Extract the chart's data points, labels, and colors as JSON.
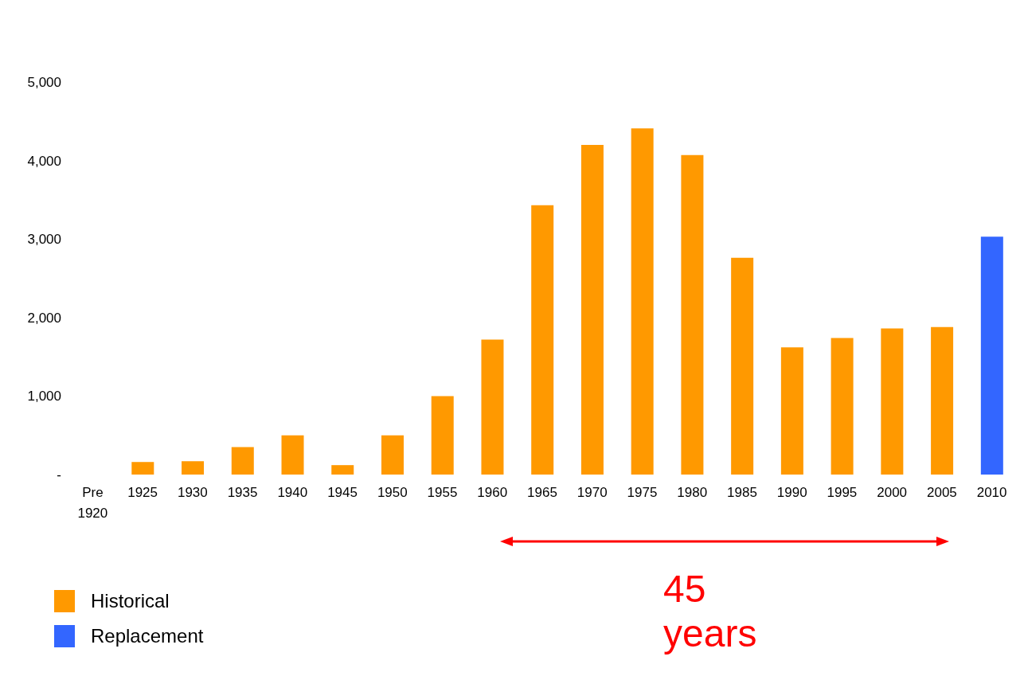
{
  "chart_data": {
    "type": "bar",
    "stacked": true,
    "categories": [
      "Pre 1920",
      "1925",
      "1930",
      "1935",
      "1940",
      "1945",
      "1950",
      "1955",
      "1960",
      "1965",
      "1970",
      "1975",
      "1980",
      "1985",
      "1990",
      "1995",
      "2000",
      "2005",
      "2010"
    ],
    "series": [
      {
        "name": "Historical",
        "color": "#ff9900",
        "values": [
          0,
          160,
          170,
          350,
          500,
          120,
          500,
          1000,
          1720,
          3430,
          4200,
          4410,
          4070,
          2760,
          1620,
          1740,
          1860,
          1880,
          null
        ]
      },
      {
        "name": "Replacement",
        "color": "#3366ff",
        "values": [
          null,
          null,
          null,
          null,
          null,
          null,
          null,
          null,
          null,
          null,
          null,
          null,
          null,
          null,
          null,
          null,
          null,
          null,
          3030
        ]
      }
    ],
    "ylim": [
      0,
      5000
    ],
    "yticks": [
      {
        "value": 0,
        "label": "-"
      },
      {
        "value": 1000,
        "label": "1,000"
      },
      {
        "value": 2000,
        "label": "2,000"
      },
      {
        "value": 3000,
        "label": "3,000"
      },
      {
        "value": 4000,
        "label": "4,000"
      },
      {
        "value": 5000,
        "label": "5,000"
      }
    ],
    "grid": false,
    "legend": "bottom left",
    "annotations": [
      "45 years"
    ]
  }
}
